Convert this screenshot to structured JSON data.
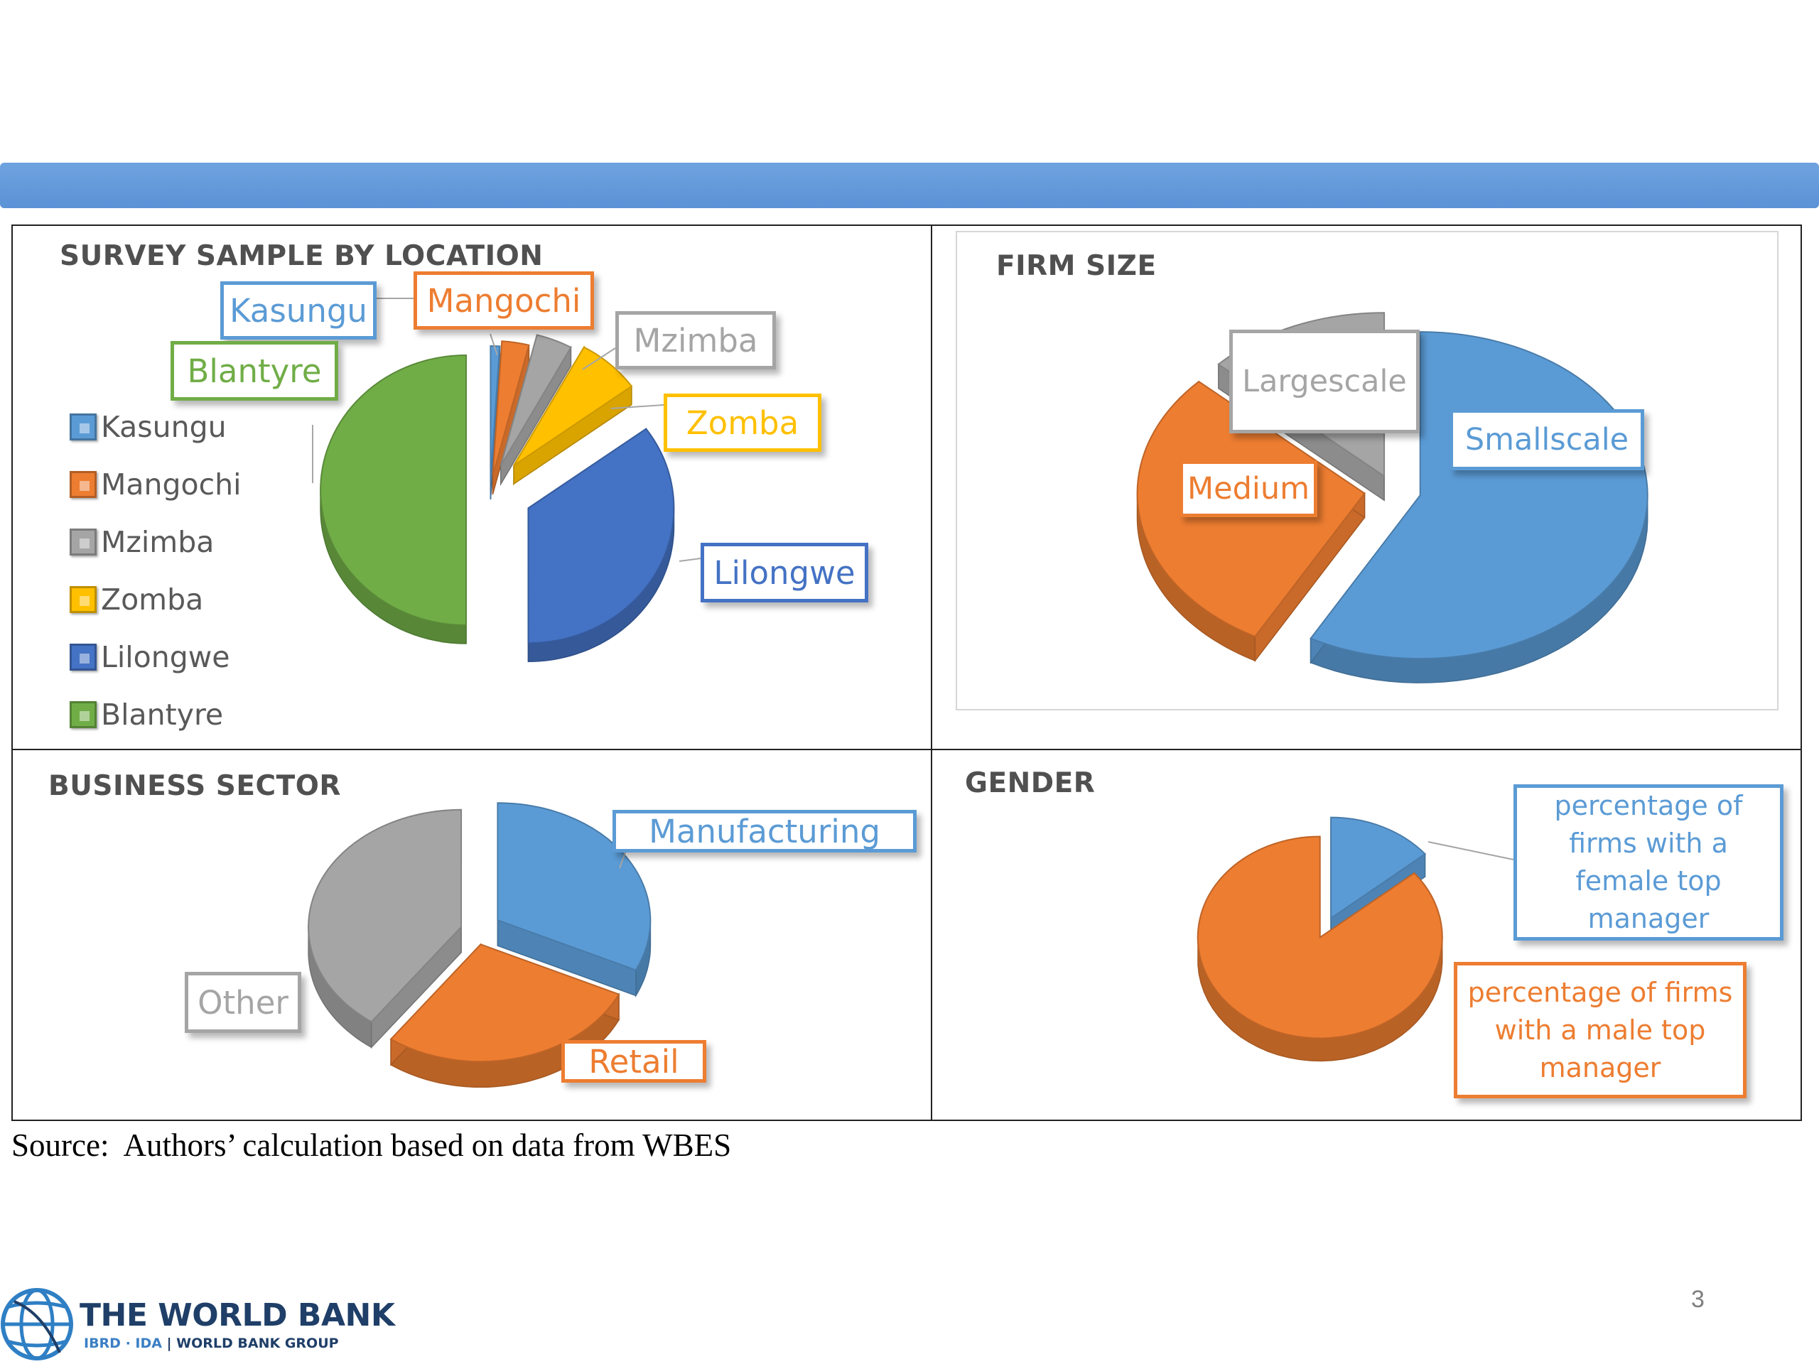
{
  "slide": {
    "page_number": "3",
    "source_note": "Source:  Authors’ calculation based on data from WBES",
    "logo": {
      "title": "THE WORLD BANK",
      "ibrd_ida": "IBRD · IDA",
      "separator": "|",
      "group": "WORLD BANK GROUP"
    }
  },
  "colors": {
    "banner": "#5b9bd5",
    "Kasungu": "#5b9bd5",
    "Mangochi": "#ed7d31",
    "Mzimba": "#a5a5a5",
    "Zomba": "#ffc000",
    "Lilongwe": "#4472c4",
    "Blantyre": "#70ad47",
    "Smallscale": "#5b9bd5",
    "Medium": "#ed7d31",
    "Largescale": "#a5a5a5",
    "Manufacturing": "#5b9bd5",
    "Retail": "#ed7d31",
    "Other": "#a5a5a5",
    "female": "#5b9bd5",
    "male": "#ed7d31"
  },
  "chart_data": [
    {
      "type": "pie",
      "title": "SURVEY SAMPLE BY LOCATION",
      "legend_position": "left",
      "categories": [
        "Kasungu",
        "Mangochi",
        "Mzimba",
        "Zomba",
        "Lilongwe",
        "Blantyre"
      ],
      "values": [
        1,
        3,
        4,
        7,
        35,
        50
      ]
    },
    {
      "type": "pie",
      "title": "FIRM SIZE",
      "categories": [
        "Smallscale",
        "Medium",
        "Largescale"
      ],
      "values": [
        58,
        29,
        13
      ]
    },
    {
      "type": "pie",
      "title": "BUSINESS SECTOR",
      "categories": [
        "Manufacturing",
        "Retail",
        "Other"
      ],
      "values": [
        32,
        28,
        40
      ]
    },
    {
      "type": "pie",
      "title": "GENDER",
      "categories": [
        "percentage of firms with a female top manager",
        "percentage of firms with a male top manager"
      ],
      "values": [
        14,
        86
      ]
    }
  ]
}
